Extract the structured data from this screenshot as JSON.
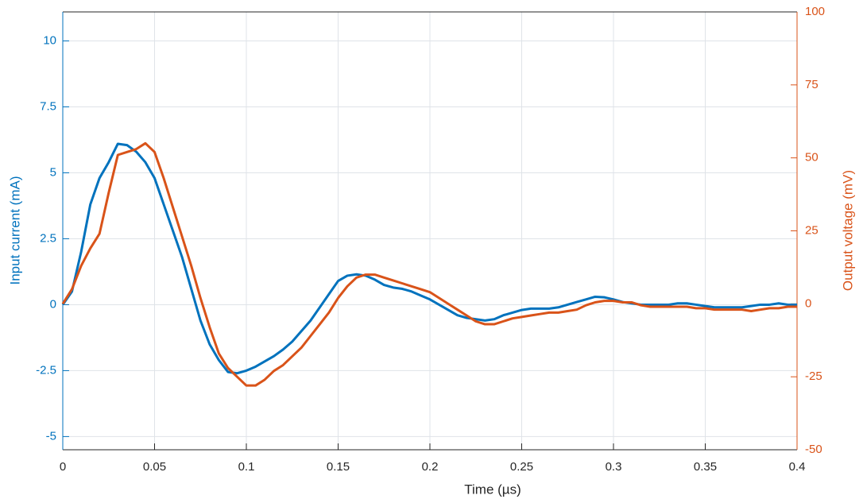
{
  "chart_data": {
    "type": "line",
    "xlabel": "Time (µs)",
    "ylabel": "Input current (mA)",
    "y2label": "Output voltage (mV)",
    "x": [
      0,
      0.005,
      0.01,
      0.015,
      0.02,
      0.025,
      0.03,
      0.035,
      0.04,
      0.045,
      0.05,
      0.055,
      0.06,
      0.065,
      0.07,
      0.075,
      0.08,
      0.085,
      0.09,
      0.095,
      0.1,
      0.105,
      0.11,
      0.115,
      0.12,
      0.125,
      0.13,
      0.135,
      0.14,
      0.145,
      0.15,
      0.155,
      0.16,
      0.165,
      0.17,
      0.175,
      0.18,
      0.185,
      0.19,
      0.195,
      0.2,
      0.205,
      0.21,
      0.215,
      0.22,
      0.225,
      0.23,
      0.235,
      0.24,
      0.245,
      0.25,
      0.255,
      0.26,
      0.265,
      0.27,
      0.275,
      0.28,
      0.285,
      0.29,
      0.295,
      0.3,
      0.305,
      0.31,
      0.315,
      0.32,
      0.325,
      0.33,
      0.335,
      0.34,
      0.345,
      0.35,
      0.355,
      0.36,
      0.365,
      0.37,
      0.375,
      0.38,
      0.385,
      0.39,
      0.395,
      0.4
    ],
    "series": [
      {
        "name": "Input current",
        "color": "#0072bd",
        "axis": "y",
        "values": [
          0,
          0.5,
          2,
          3.8,
          4.8,
          5.4,
          6.1,
          6.05,
          5.8,
          5.4,
          4.8,
          3.8,
          2.8,
          1.8,
          0.6,
          -0.6,
          -1.5,
          -2.1,
          -2.55,
          -2.6,
          -2.5,
          -2.35,
          -2.15,
          -1.95,
          -1.7,
          -1.4,
          -1.0,
          -0.6,
          -0.1,
          0.4,
          0.9,
          1.1,
          1.15,
          1.1,
          0.95,
          0.75,
          0.65,
          0.6,
          0.5,
          0.35,
          0.2,
          0,
          -0.2,
          -0.4,
          -0.5,
          -0.55,
          -0.6,
          -0.55,
          -0.4,
          -0.3,
          -0.2,
          -0.15,
          -0.15,
          -0.15,
          -0.1,
          0,
          0.1,
          0.2,
          0.3,
          0.28,
          0.2,
          0.1,
          0.05,
          0,
          0,
          0,
          0,
          0.05,
          0.05,
          0,
          -0.05,
          -0.1,
          -0.1,
          -0.1,
          -0.1,
          -0.05,
          0,
          0,
          0.05,
          0,
          0
        ]
      },
      {
        "name": "Output voltage",
        "color": "#d95319",
        "axis": "y2",
        "values": [
          0,
          5,
          13,
          19,
          24,
          38,
          51,
          52,
          53,
          55,
          52,
          43,
          33,
          23,
          13,
          2,
          -8,
          -17,
          -22,
          -25,
          -28,
          -28,
          -26,
          -23,
          -21,
          -18,
          -15,
          -11,
          -7,
          -3,
          2,
          6,
          9,
          10,
          10,
          9,
          8,
          7,
          6,
          5,
          4,
          2,
          0,
          -2,
          -4,
          -6,
          -7,
          -7,
          -6,
          -5,
          -4.5,
          -4,
          -3.5,
          -3,
          -3,
          -2.5,
          -2,
          -0.5,
          0.5,
          1,
          1,
          0.5,
          0.5,
          -0.5,
          -1,
          -1,
          -1,
          -1,
          -1,
          -1.5,
          -1.5,
          -2,
          -2,
          -2,
          -2,
          -2.5,
          -2,
          -1.5,
          -1.5,
          -1,
          -1
        ]
      }
    ],
    "xlim": [
      0,
      0.4
    ],
    "xticks": [
      0,
      0.05,
      0.1,
      0.15,
      0.2,
      0.25,
      0.3,
      0.35,
      0.4
    ],
    "ylim": [
      -5.5,
      11.1
    ],
    "yticks": [
      -5,
      -2.5,
      0,
      2.5,
      5,
      7.5,
      10
    ],
    "y2lim": [
      -50,
      100
    ],
    "y2ticks": [
      -50,
      -25,
      0,
      25,
      50,
      75,
      100
    ],
    "grid": true
  }
}
